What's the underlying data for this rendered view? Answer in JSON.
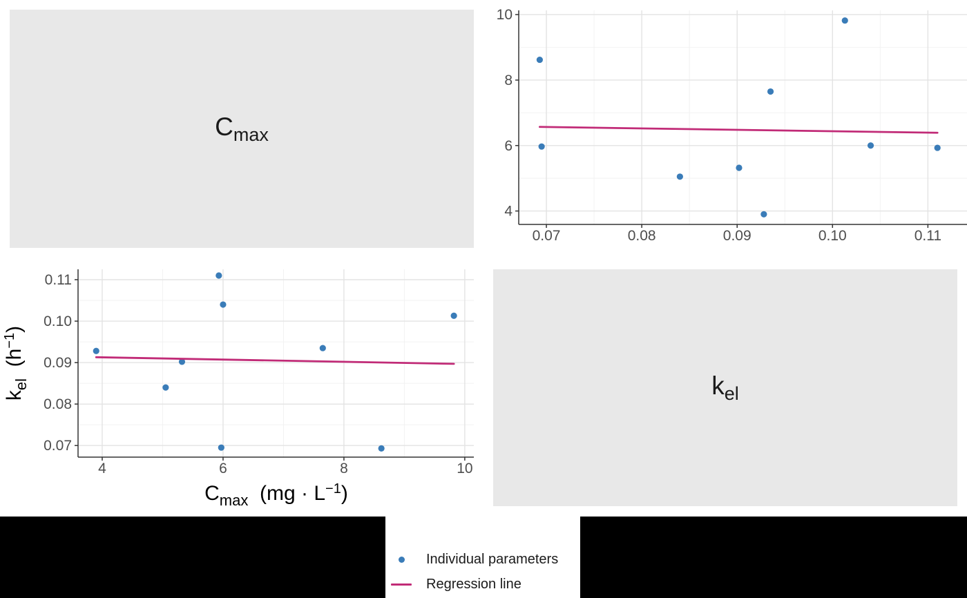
{
  "page": {
    "background": "#FFFFFF",
    "bottom_bar_color": "#000000"
  },
  "colors": {
    "points": "#3A7CB8",
    "regression": "#C12B77",
    "panel_bg": "#E8E8E8",
    "grid_major": "#E3E3E3",
    "grid_minor": "#F2F2F2",
    "axis_line": "#333333",
    "tick_text": "#4D4D4D",
    "title_text": "#000000",
    "legend_text": "#1A1A1A"
  },
  "diagonal_panels": [
    {
      "id": "cmax",
      "label_parts": [
        [
          "n",
          "C"
        ],
        [
          "sub",
          "max"
        ]
      ]
    },
    {
      "id": "kel",
      "label_parts": [
        [
          "n",
          "k"
        ],
        [
          "sub",
          "el"
        ]
      ]
    }
  ],
  "legend": {
    "items": [
      {
        "label": "Individual parameters",
        "marker": "point"
      },
      {
        "label": "Regression line",
        "marker": "line"
      }
    ]
  },
  "parameters": {
    "cmax": [
      3.9,
      5.05,
      5.32,
      5.93,
      5.97,
      6.0,
      7.65,
      8.62,
      9.82
    ],
    "kel": [
      0.0928,
      0.084,
      0.0902,
      0.111,
      0.0695,
      0.104,
      0.0935,
      0.0693,
      0.1013
    ]
  },
  "chart_data": [
    {
      "type": "scatter",
      "position": "top-right",
      "x_var": "kel",
      "y_var": "cmax",
      "xlim": [
        0.0671,
        0.1141
      ],
      "ylim": [
        3.59,
        10.13
      ],
      "x_major_ticks": {
        "values": [
          0.07,
          0.08,
          0.09,
          0.1,
          0.11
        ],
        "labels": [
          "0.07",
          "0.08",
          "0.09",
          "0.10",
          "0.11"
        ]
      },
      "x_minor_ticks": [
        0.075,
        0.085,
        0.095,
        0.105
      ],
      "y_major_ticks": {
        "values": [
          4,
          6,
          8,
          10
        ],
        "labels": [
          "4",
          "6",
          "8",
          "10"
        ]
      },
      "y_minor_ticks": [
        5,
        7,
        9
      ],
      "xlabel_parts": [],
      "ylabel_parts": [],
      "regression": {
        "x0": 0.0693,
        "y0": 6.57,
        "x1": 0.111,
        "y1": 6.39
      },
      "grid": true,
      "legend_position": "none"
    },
    {
      "type": "scatter",
      "position": "bottom-left",
      "x_var": "cmax",
      "y_var": "kel",
      "xlim": [
        3.6,
        10.15
      ],
      "ylim": [
        0.0672,
        0.1125
      ],
      "x_major_ticks": {
        "values": [
          4,
          6,
          8,
          10
        ],
        "labels": [
          "4",
          "6",
          "8",
          "10"
        ]
      },
      "x_minor_ticks": [
        5,
        7,
        9
      ],
      "y_major_ticks": {
        "values": [
          0.07,
          0.08,
          0.09,
          0.1,
          0.11
        ],
        "labels": [
          "0.07",
          "0.08",
          "0.09",
          "0.10",
          "0.11"
        ]
      },
      "y_minor_ticks": [
        0.075,
        0.085,
        0.095,
        0.105
      ],
      "xlabel_parts": [
        [
          "n",
          "C"
        ],
        [
          "sub",
          "max"
        ],
        [
          "n",
          "  (mg · L"
        ],
        [
          "sup",
          "−1"
        ],
        [
          "n",
          ")"
        ]
      ],
      "ylabel_parts": [
        [
          "n",
          "k"
        ],
        [
          "sub",
          "el"
        ],
        [
          "n",
          "  (h"
        ],
        [
          "sup",
          "−1"
        ],
        [
          "n",
          ")"
        ]
      ],
      "regression": {
        "x0": 3.9,
        "y0": 0.0913,
        "x1": 9.82,
        "y1": 0.0897
      },
      "grid": true,
      "legend_position": "none"
    }
  ]
}
